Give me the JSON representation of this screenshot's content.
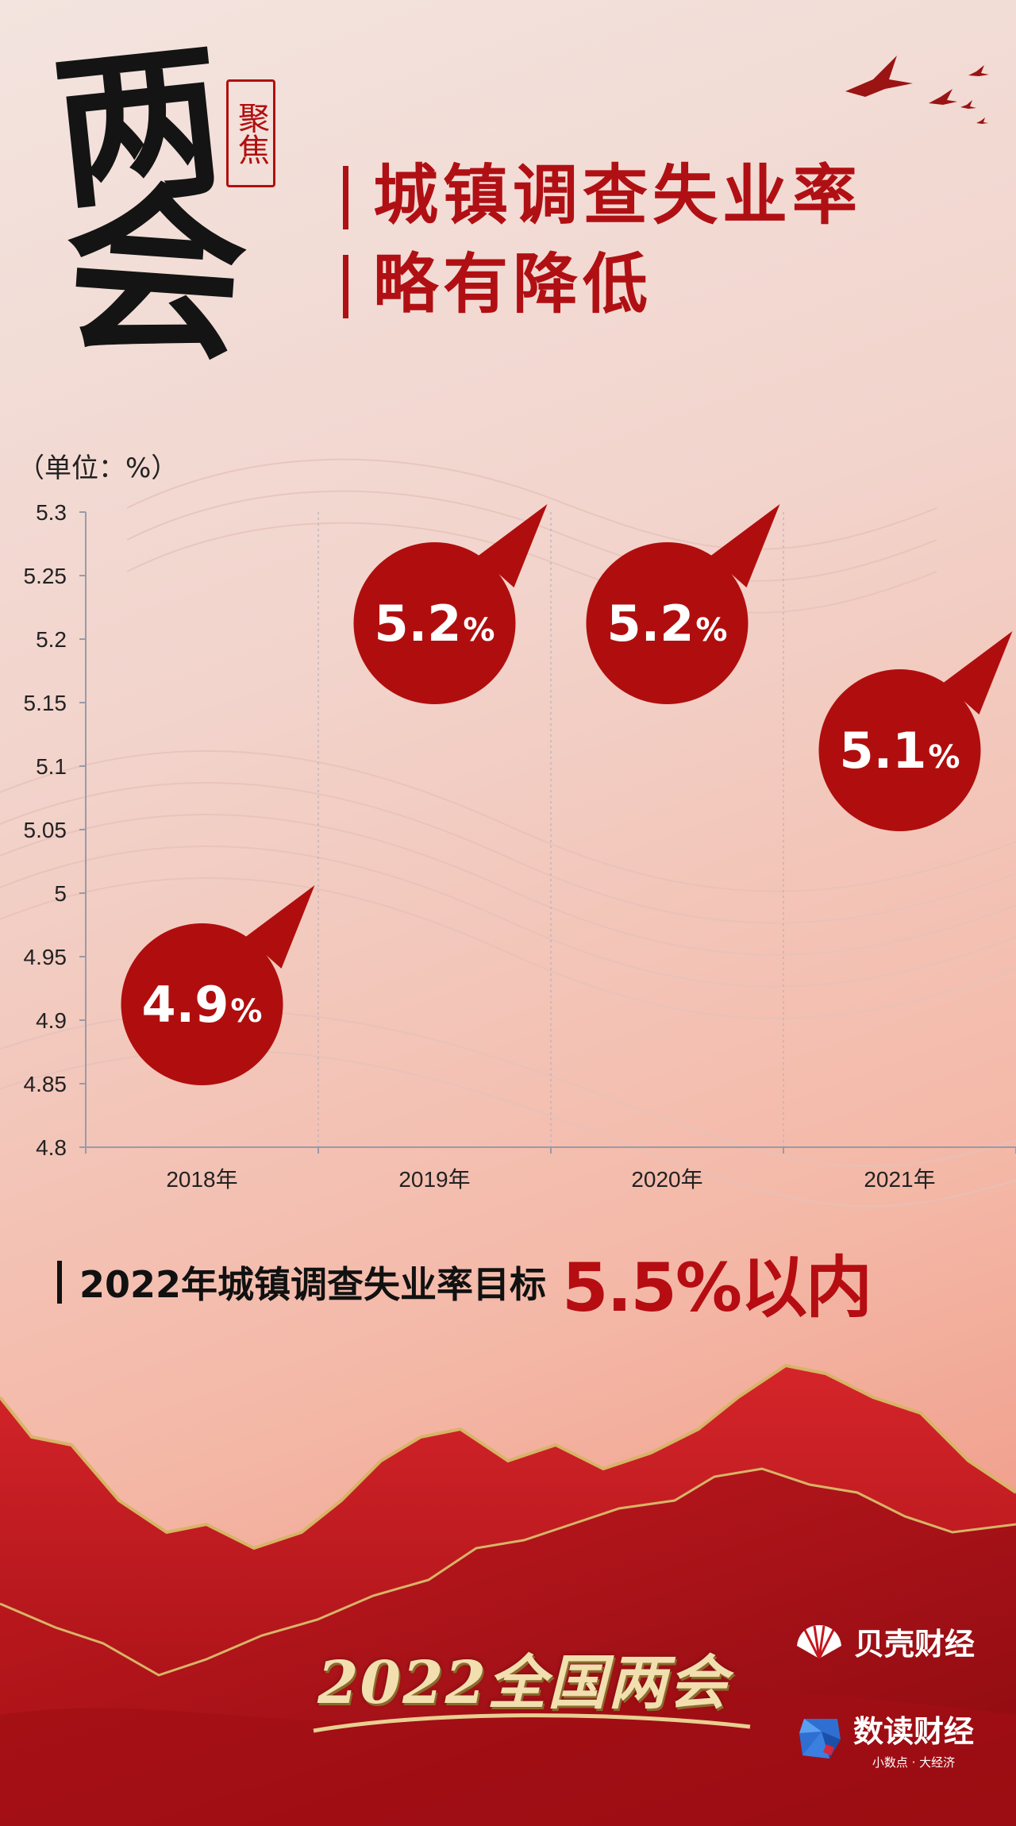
{
  "header": {
    "calligraphy_chars": [
      "两",
      "会"
    ],
    "seal_text": "聚焦",
    "title_lines": [
      "城镇调查失业率",
      "略有降低"
    ]
  },
  "unit_label": "（单位：%）",
  "chart_data": {
    "type": "scatter",
    "title": "城镇调查失业率略有降低",
    "ylabel": "（单位：%）",
    "xlabel": "",
    "categories": [
      "2018年",
      "2019年",
      "2020年",
      "2021年"
    ],
    "values": [
      4.9,
      5.2,
      5.2,
      5.1
    ],
    "data_labels": [
      "4.9",
      "5.2",
      "5.2",
      "5.1"
    ],
    "data_label_suffix": "%",
    "ylim": [
      4.8,
      5.3
    ],
    "yticks": [
      4.8,
      4.85,
      4.9,
      4.95,
      5,
      5.05,
      5.1,
      5.15,
      5.2,
      5.25,
      5.3
    ],
    "ytick_labels": [
      "4.8",
      "4.85",
      "4.9",
      "4.95",
      "5",
      "5.05",
      "5.1",
      "5.15",
      "5.2",
      "5.25",
      "5.3"
    ],
    "grid": "vertical dashed between categories",
    "marker": "red speech-bubble circle with value label",
    "colors": {
      "bubble": "#b00e0e",
      "label": "#ffffff",
      "axis": "#9a9aa8"
    }
  },
  "target": {
    "text": "2022年城镇调查失业率目标",
    "value": "5.5%以内"
  },
  "footer": {
    "event_logo": "2022全国两会",
    "brand_1": "贝壳财经",
    "brand_2": "数读财经",
    "brand_2_slogan": "小数点 · 大经济"
  },
  "colors": {
    "accent_red": "#b01014",
    "mountain_red": "#c8161d",
    "gold": "#d8b466"
  }
}
